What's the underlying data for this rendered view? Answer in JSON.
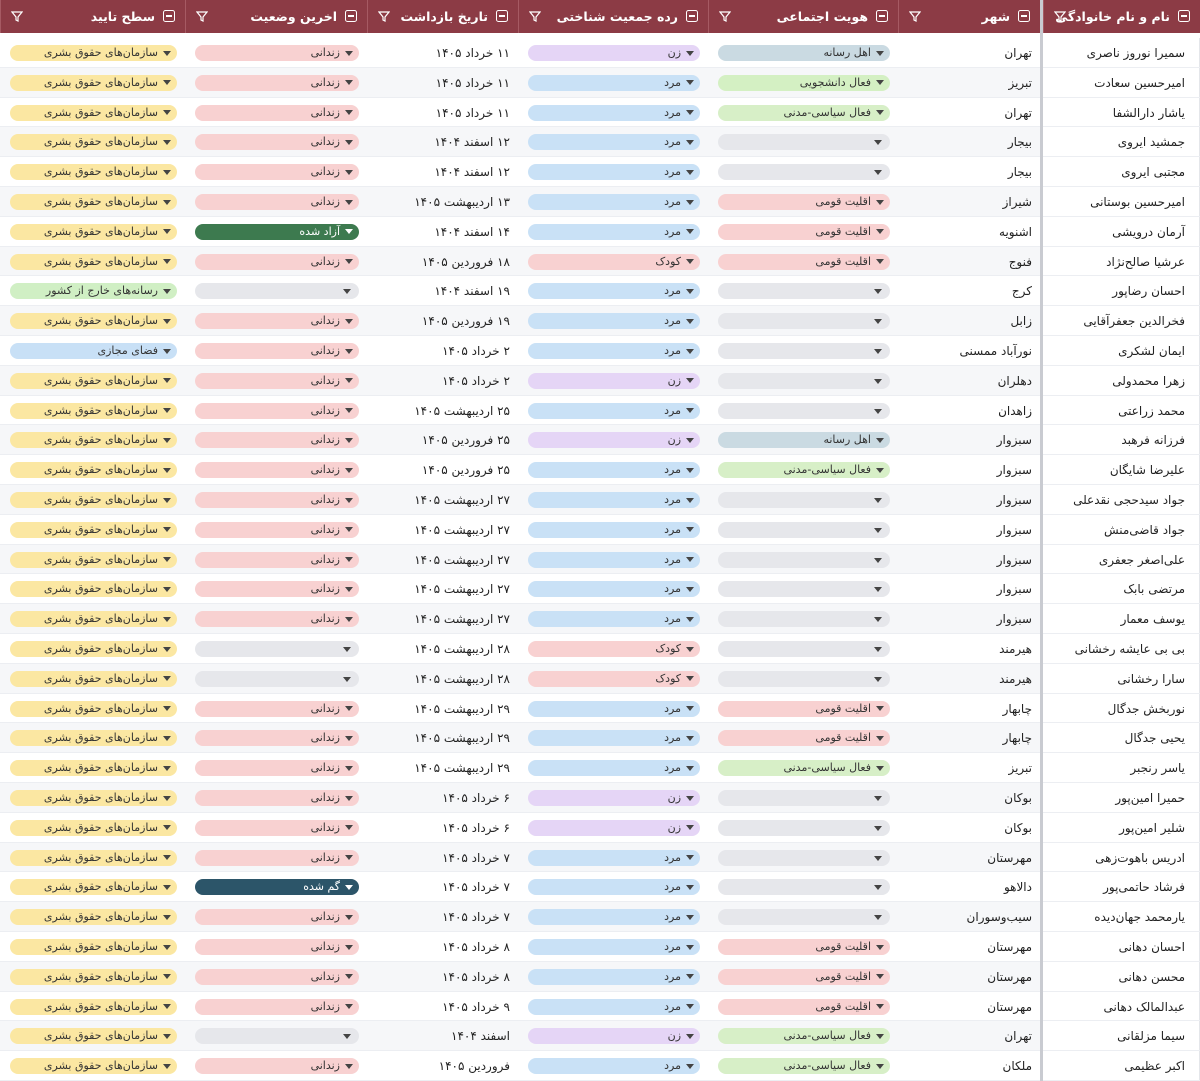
{
  "table": {
    "columns": [
      "نام و نام خانوادگی",
      "شهر",
      "هویت اجتماعی",
      "رده جمعیت شناختی",
      "تاریخ بازداشت",
      "اخرین وضعیت",
      "سطح تایید"
    ],
    "rows": [
      [
        "سمیرا نوروز ناصری",
        "تهران",
        "اهل رسانه",
        "زن",
        "۱۱ خرداد ۱۴۰۵",
        "زندانی",
        "سازمان‌های حقوق بشری"
      ],
      [
        "امیرحسین سعادت",
        "تبریز",
        "فعال دانشجویی",
        "مرد",
        "۱۱ خرداد ۱۴۰۵",
        "زندانی",
        "سازمان‌های حقوق بشری"
      ],
      [
        "یاشار دارالشفا",
        "تهران",
        "فعال سیاسی-مدنی",
        "مرد",
        "۱۱ خرداد ۱۴۰۵",
        "زندانی",
        "سازمان‌های حقوق بشری"
      ],
      [
        "جمشید ایروی",
        "بیجار",
        null,
        "مرد",
        "۱۲ اسفند ۱۴۰۴",
        "زندانی",
        "سازمان‌های حقوق بشری"
      ],
      [
        "مجتبی ایروی",
        "بیجار",
        null,
        "مرد",
        "۱۲ اسفند ۱۴۰۴",
        "زندانی",
        "سازمان‌های حقوق بشری"
      ],
      [
        "امیرحسین بوستانی",
        "شیراز",
        "اقلیت قومی",
        "مرد",
        "۱۳ اردیبهشت ۱۴۰۵",
        "زندانی",
        "سازمان‌های حقوق بشری"
      ],
      [
        "آرمان درویشی",
        "اشنویه",
        "اقلیت قومی",
        "مرد",
        "۱۴ اسفند ۱۴۰۴",
        "آزاد شده",
        "سازمان‌های حقوق بشری"
      ],
      [
        "عرشیا صالح‌نژاد",
        "فنوج",
        "اقلیت قومی",
        "کودک",
        "۱۸ فروردین ۱۴۰۵",
        "زندانی",
        "سازمان‌های حقوق بشری"
      ],
      [
        "احسان رضاپور",
        "کرج",
        null,
        "مرد",
        "۱۹ اسفند ۱۴۰۴",
        null,
        "رسانه‌های خارج از کشور"
      ],
      [
        "فخرالدین جعفرآقایی",
        "زابل",
        null,
        "مرد",
        "۱۹ فروردین ۱۴۰۵",
        "زندانی",
        "سازمان‌های حقوق بشری"
      ],
      [
        "ایمان لشکری",
        "نورآباد ممسنی",
        null,
        "مرد",
        "۲ خرداد ۱۴۰۵",
        "زندانی",
        "فضای مجازی"
      ],
      [
        "زهرا محمدولی",
        "دهلران",
        null,
        "زن",
        "۲ خرداد ۱۴۰۵",
        "زندانی",
        "سازمان‌های حقوق بشری"
      ],
      [
        "محمد زراعتی",
        "زاهدان",
        null,
        "مرد",
        "۲۵ اردیبهشت ۱۴۰۵",
        "زندانی",
        "سازمان‌های حقوق بشری"
      ],
      [
        "فرزانه فرهبد",
        "سبزوار",
        "اهل رسانه",
        "زن",
        "۲۵ فروردین ۱۴۰۵",
        "زندانی",
        "سازمان‌های حقوق بشری"
      ],
      [
        "علیرضا شایگان",
        "سبزوار",
        "فعال سیاسی-مدنی",
        "مرد",
        "۲۵ فروردین ۱۴۰۵",
        "زندانی",
        "سازمان‌های حقوق بشری"
      ],
      [
        "جواد سیدحجی نقدعلی",
        "سبزوار",
        null,
        "مرد",
        "۲۷ اردیبهشت ۱۴۰۵",
        "زندانی",
        "سازمان‌های حقوق بشری"
      ],
      [
        "جواد قاضی‌منش",
        "سبزوار",
        null,
        "مرد",
        "۲۷ اردیبهشت ۱۴۰۵",
        "زندانی",
        "سازمان‌های حقوق بشری"
      ],
      [
        "علی‌اصغر جعفری",
        "سبزوار",
        null,
        "مرد",
        "۲۷ اردیبهشت ۱۴۰۵",
        "زندانی",
        "سازمان‌های حقوق بشری"
      ],
      [
        "مرتضی بابک",
        "سبزوار",
        null,
        "مرد",
        "۲۷ اردیبهشت ۱۴۰۵",
        "زندانی",
        "سازمان‌های حقوق بشری"
      ],
      [
        "یوسف معمار",
        "سبزوار",
        null,
        "مرد",
        "۲۷ اردیبهشت ۱۴۰۵",
        "زندانی",
        "سازمان‌های حقوق بشری"
      ],
      [
        "بی بی عایشه رخشانی",
        "هیرمند",
        null,
        "کودک",
        "۲۸ اردیبهشت ۱۴۰۵",
        null,
        "سازمان‌های حقوق بشری"
      ],
      [
        "سارا رخشانی",
        "هیرمند",
        null,
        "کودک",
        "۲۸ اردیبهشت ۱۴۰۵",
        null,
        "سازمان‌های حقوق بشری"
      ],
      [
        "نوربخش جدگال",
        "چابهار",
        "اقلیت قومی",
        "مرد",
        "۲۹ اردیبهشت ۱۴۰۵",
        "زندانی",
        "سازمان‌های حقوق بشری"
      ],
      [
        "یحیی جدگال",
        "چابهار",
        "اقلیت قومی",
        "مرد",
        "۲۹ اردیبهشت ۱۴۰۵",
        "زندانی",
        "سازمان‌های حقوق بشری"
      ],
      [
        "یاسر رنجبر",
        "تبریز",
        "فعال سیاسی-مدنی",
        "مرد",
        "۲۹ اردیبهشت ۱۴۰۵",
        "زندانی",
        "سازمان‌های حقوق بشری"
      ],
      [
        "حمیرا امین‌پور",
        "بوکان",
        null,
        "زن",
        "۶ خرداد ۱۴۰۵",
        "زندانی",
        "سازمان‌های حقوق بشری"
      ],
      [
        "شلیر امین‌پور",
        "بوکان",
        null,
        "زن",
        "۶ خرداد ۱۴۰۵",
        "زندانی",
        "سازمان‌های حقوق بشری"
      ],
      [
        "ادریس باهوت‌زهی",
        "مهرستان",
        null,
        "مرد",
        "۷ خرداد ۱۴۰۵",
        "زندانی",
        "سازمان‌های حقوق بشری"
      ],
      [
        "فرشاد حاتمی‌پور",
        "دالاهو",
        null,
        "مرد",
        "۷ خرداد ۱۴۰۵",
        "گم شده",
        "سازمان‌های حقوق بشری"
      ],
      [
        "یارمحمد جهان‌دیده",
        "سیب‌وسوران",
        null,
        "مرد",
        "۷ خرداد ۱۴۰۵",
        "زندانی",
        "سازمان‌های حقوق بشری"
      ],
      [
        "احسان دهانی",
        "مهرستان",
        "اقلیت قومی",
        "مرد",
        "۸ خرداد ۱۴۰۵",
        "زندانی",
        "سازمان‌های حقوق بشری"
      ],
      [
        "محسن دهانی",
        "مهرستان",
        "اقلیت قومی",
        "مرد",
        "۸ خرداد ۱۴۰۵",
        "زندانی",
        "سازمان‌های حقوق بشری"
      ],
      [
        "عبدالمالک دهانی",
        "مهرستان",
        "اقلیت قومی",
        "مرد",
        "۹ خرداد ۱۴۰۵",
        "زندانی",
        "سازمان‌های حقوق بشری"
      ],
      [
        "سیما مزلقانی",
        "تهران",
        "فعال سیاسی-مدنی",
        "زن",
        "اسفند ۱۴۰۴",
        null,
        "سازمان‌های حقوق بشری"
      ],
      [
        "اکبر عظیمی",
        "ملکان",
        "فعال سیاسی-مدنی",
        "مرد",
        "فروردین ۱۴۰۵",
        "زندانی",
        "سازمان‌های حقوق بشری"
      ]
    ],
    "tag_colors": {
      "زندانی": "#f8d1d1",
      "سازمان‌های حقوق بشری": "#fbe7a2",
      "آزاد شده": "#3d7a4f",
      "گم شده": "#2c5569",
      "رسانه‌های خارج از کشور": "#d0efc4",
      "فضای مجازی": "#c8e0f6",
      "زن": "#e5d5f6",
      "مرد": "#c9e1f6",
      "کودک": "#f8d1d1",
      "اهل رسانه": "#cadae2",
      "فعال دانشجویی": "#d4f0c3",
      "فعال سیاسی-مدنی": "#d7efc7",
      "اقلیت قومی": "#f8d1d1"
    }
  }
}
